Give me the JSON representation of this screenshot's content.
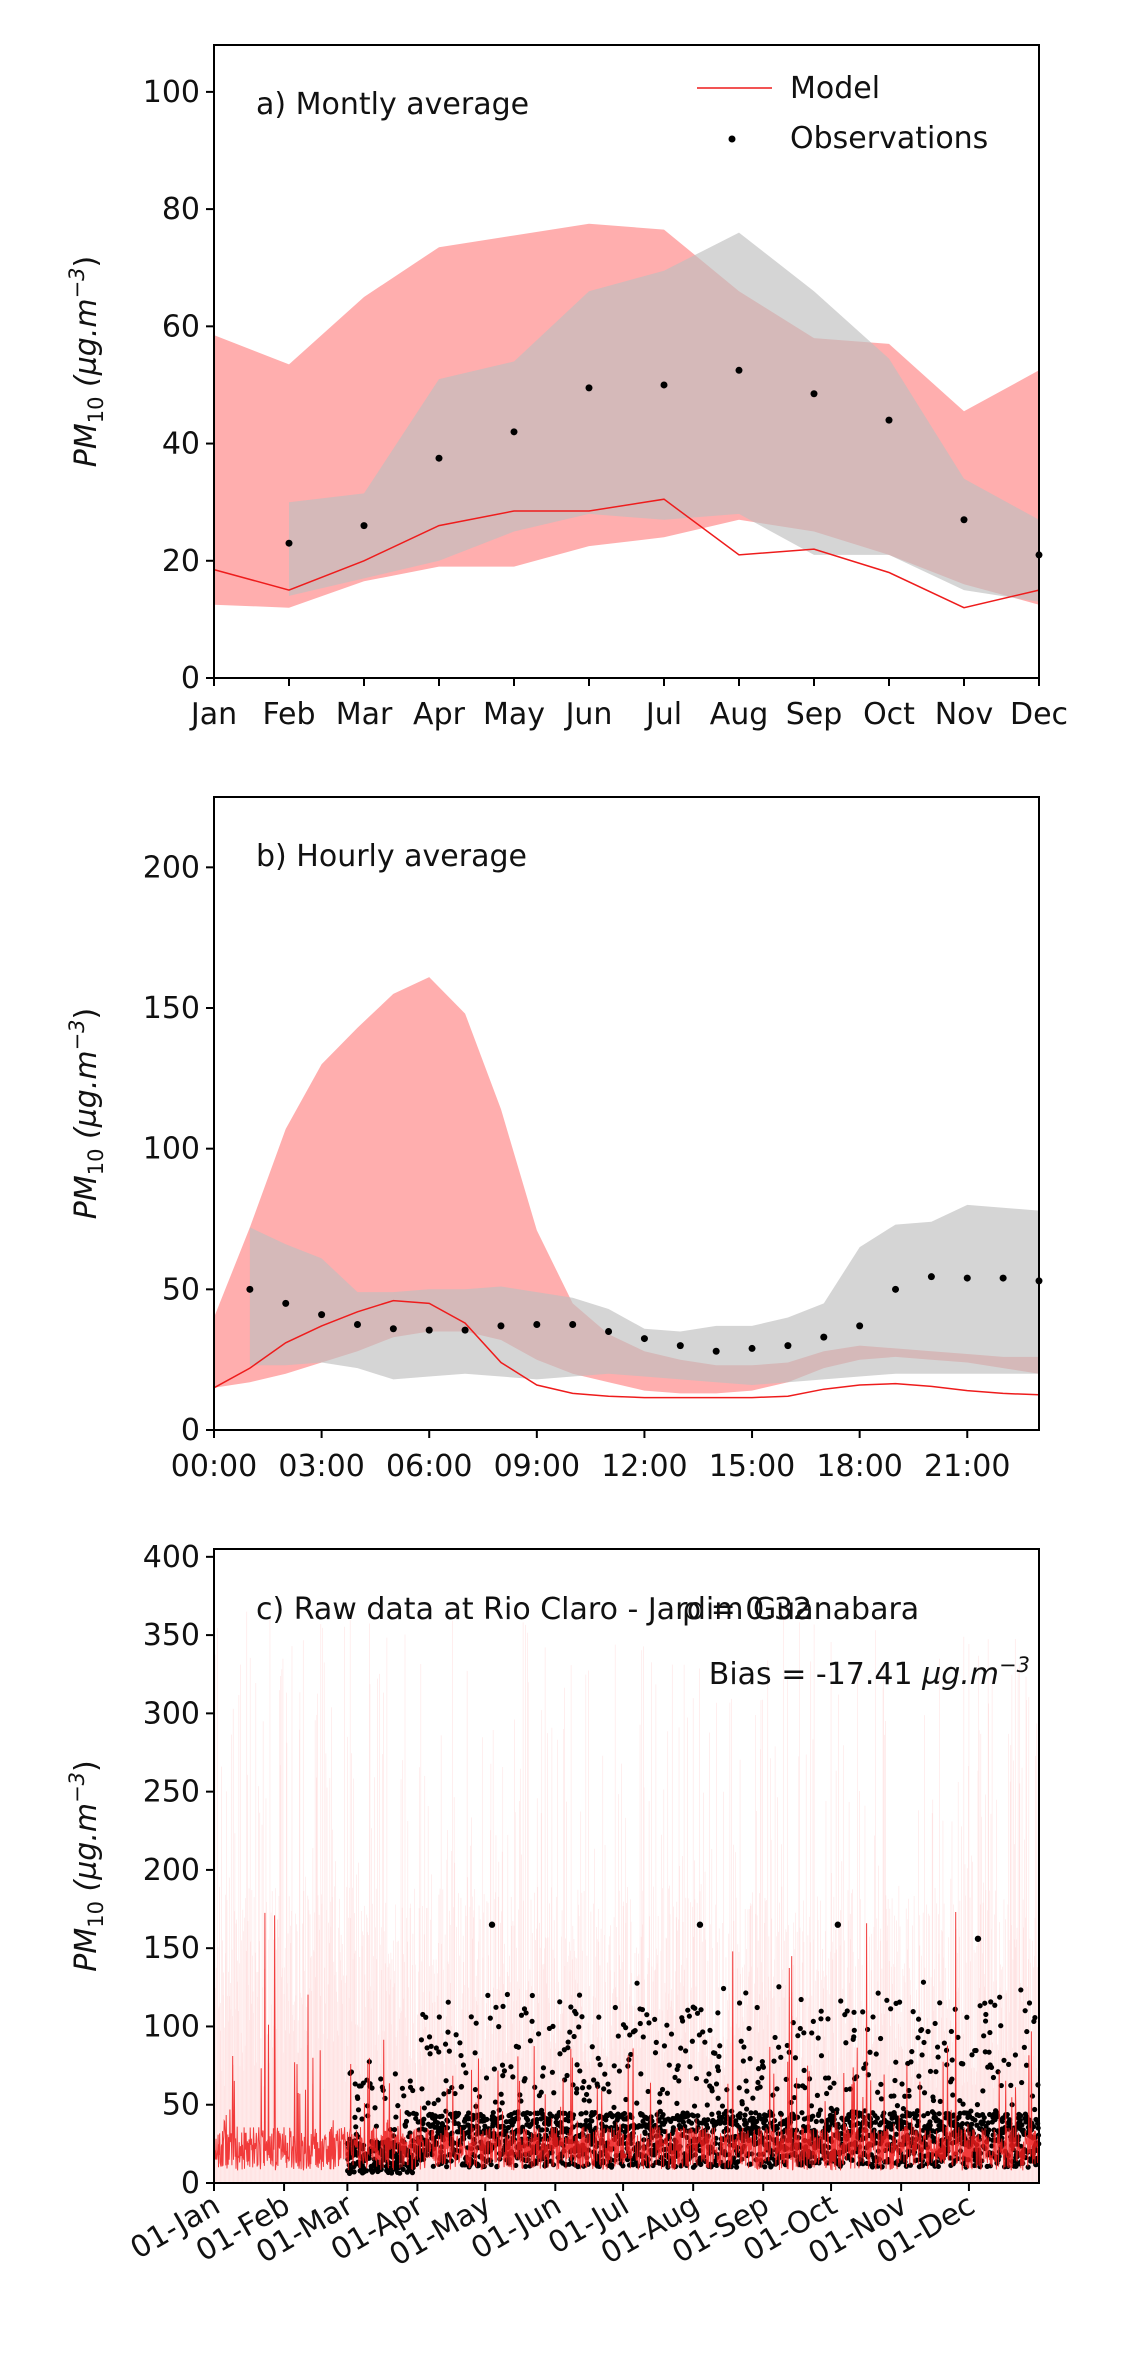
{
  "chart_data": [
    {
      "type": "line",
      "panel": "a",
      "title": "a) Montly average",
      "ylabel": "PM10 (µg.m-3)",
      "ylabel_parts": {
        "base": "PM",
        "sub": "10",
        "unit": " (µg.m",
        "sup": "−3",
        "close": ")"
      },
      "ylim": [
        0,
        108
      ],
      "yticks": [
        0,
        20,
        40,
        60,
        80,
        100
      ],
      "ytick_labels": [
        "0",
        "20",
        "40",
        "60",
        "80",
        "100"
      ],
      "x": [
        0,
        1,
        2,
        3,
        4,
        5,
        6,
        7,
        8,
        9,
        10,
        11
      ],
      "xlim": [
        0,
        11
      ],
      "xtick_labels": [
        "Jan",
        "Feb",
        "Mar",
        "Apr",
        "May",
        "Jun",
        "Jul",
        "Aug",
        "Sep",
        "Oct",
        "Nov",
        "Dec"
      ],
      "legend": {
        "placement": "top-right",
        "entries": [
          "Model",
          "Observations"
        ]
      },
      "model_line": [
        18.5,
        15,
        20,
        26,
        28.5,
        28.5,
        30.5,
        21,
        22,
        18,
        12,
        15
      ],
      "model_band": {
        "upper": [
          58.5,
          53.5,
          65,
          73.5,
          75.5,
          77.5,
          76.5,
          66,
          58,
          57,
          45.5,
          52.5
        ],
        "lower": [
          12.5,
          12,
          16.5,
          19,
          19,
          22.5,
          24,
          27,
          25,
          21,
          16,
          12.5
        ]
      },
      "obs_band": {
        "x": [
          1,
          2,
          3,
          4,
          5,
          6,
          7,
          8,
          9,
          10,
          11
        ],
        "upper": [
          30,
          31.5,
          51,
          54,
          66,
          69.5,
          76,
          66,
          54.5,
          34,
          27
        ],
        "lower": [
          14,
          17,
          20,
          25,
          28,
          27,
          28,
          21,
          21,
          15,
          13
        ]
      },
      "observations": {
        "x": [
          1,
          2,
          3,
          4,
          5,
          6,
          7,
          8,
          9,
          10,
          11
        ],
        "values": [
          23,
          26,
          37.5,
          42,
          49.5,
          50,
          52.5,
          48.5,
          44,
          27,
          21
        ]
      }
    },
    {
      "type": "line",
      "panel": "b",
      "title": "b) Hourly average",
      "ylabel": "PM10 (µg.m-3)",
      "ylabel_parts": {
        "base": "PM",
        "sub": "10",
        "unit": " (µg.m",
        "sup": "−3",
        "close": ")"
      },
      "ylim": [
        0,
        225
      ],
      "yticks": [
        0,
        50,
        100,
        150,
        200
      ],
      "ytick_labels": [
        "0",
        "50",
        "100",
        "150",
        "200"
      ],
      "x": [
        0,
        1,
        2,
        3,
        4,
        5,
        6,
        7,
        8,
        9,
        10,
        11,
        12,
        13,
        14,
        15,
        16,
        17,
        18,
        19,
        20,
        21,
        22,
        23
      ],
      "xlim": [
        0,
        23
      ],
      "xticks": [
        0,
        3,
        6,
        9,
        12,
        15,
        18,
        21
      ],
      "xtick_labels": [
        "00:00",
        "03:00",
        "06:00",
        "09:00",
        "12:00",
        "15:00",
        "18:00",
        "21:00"
      ],
      "model_line": [
        15,
        22,
        31,
        37,
        42,
        46,
        45,
        38,
        24,
        16,
        13,
        12,
        11.5,
        11.5,
        11.5,
        11.5,
        12,
        14.5,
        16,
        16.5,
        15.5,
        14,
        13,
        12.5
      ],
      "model_band": {
        "upper": [
          40,
          72,
          107,
          130,
          143,
          155,
          161,
          148,
          114,
          71,
          45,
          34,
          28,
          25,
          23,
          23,
          24,
          28,
          30,
          29,
          28,
          27,
          26,
          26
        ],
        "lower": [
          15,
          17,
          20,
          24,
          28,
          33,
          35,
          35,
          32,
          25,
          20,
          17,
          14,
          13,
          13,
          14,
          17,
          22,
          25,
          26,
          25,
          24,
          22,
          20
        ]
      },
      "obs_band": {
        "x": [
          1,
          2,
          3,
          4,
          5,
          6,
          7,
          8,
          9,
          10,
          11,
          12,
          13,
          14,
          15,
          16,
          17,
          18,
          19,
          20,
          21,
          22,
          23
        ],
        "upper": [
          72,
          66,
          61,
          49,
          49,
          50,
          50,
          51,
          49,
          47,
          43,
          36,
          35,
          37,
          37,
          40,
          45,
          65,
          73,
          74,
          80,
          79,
          78
        ],
        "lower": [
          23,
          23,
          24,
          22,
          18,
          19,
          20,
          19,
          18,
          19,
          20,
          19,
          18,
          17,
          16,
          17,
          18,
          19,
          20,
          20,
          20,
          20,
          20
        ]
      },
      "observations": {
        "x": [
          1,
          2,
          3,
          4,
          5,
          6,
          7,
          8,
          9,
          10,
          11,
          12,
          13,
          14,
          15,
          16,
          17,
          18,
          19,
          20,
          21,
          22,
          23
        ],
        "values": [
          50,
          45,
          41,
          37.5,
          36,
          35.5,
          35.5,
          37,
          37.5,
          37.5,
          35,
          32.5,
          30,
          28,
          29,
          30,
          33,
          37,
          50,
          54.5,
          54,
          54,
          53
        ]
      }
    },
    {
      "type": "scatter",
      "panel": "c",
      "title": "c) Raw data at Rio Claro - Jardim Guanabara",
      "annotations": [
        "ρ = 0.32",
        "Bias = -17.41 µg.m-3"
      ],
      "annotation_parts": {
        "bias_prefix": "Bias = -17.41 ",
        "unit": "µg.m",
        "sup": "−3"
      },
      "ylabel": "PM10 (µg.m-3)",
      "ylabel_parts": {
        "base": "PM",
        "sub": "10",
        "unit": " (µg.m",
        "sup": "−3",
        "close": ")"
      },
      "ylim": [
        0,
        405
      ],
      "yticks": [
        0,
        50,
        100,
        150,
        200,
        250,
        300,
        350,
        400
      ],
      "ytick_labels": [
        "0",
        "50",
        "100",
        "150",
        "200",
        "250",
        "300",
        "350",
        "400"
      ],
      "xlim_days": [
        0,
        365
      ],
      "xticks_days": [
        0,
        31,
        59,
        90,
        120,
        151,
        181,
        212,
        243,
        273,
        304,
        334
      ],
      "xtick_labels": [
        "01-Jan",
        "01-Feb",
        "01-Mar",
        "01-Apr",
        "01-May",
        "01-Jun",
        "01-Jul",
        "01-Aug",
        "01-Sep",
        "01-Oct",
        "01-Nov",
        "01-Dec"
      ],
      "notable_observations": [
        {
          "date": "01-May",
          "value": 165
        },
        {
          "date": "01-Aug",
          "value": 165
        },
        {
          "date": "01-Oct",
          "value": 165
        },
        {
          "date": "01-Dec",
          "value": 156
        }
      ],
      "model_range": [
        0,
        175
      ],
      "model_band_max": 365,
      "observations_start": "01-Mar",
      "observations_typical_range": [
        0,
        160
      ]
    }
  ],
  "colors": {
    "model": "#ee1c1c",
    "model_band": "#ff9a9a",
    "obs_band": "#bebebe",
    "observations": "#000000",
    "axis": "#000000"
  }
}
